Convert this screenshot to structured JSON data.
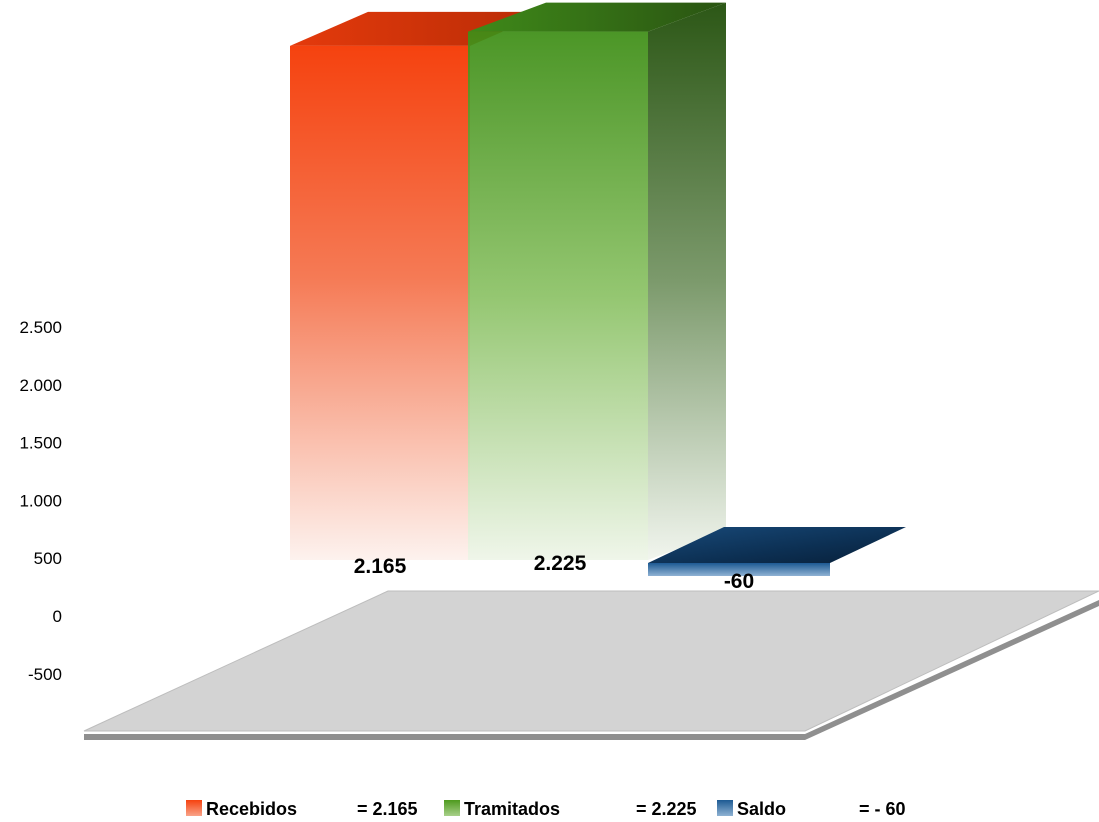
{
  "chart_data": {
    "type": "bar",
    "categories": [
      "Recebidos",
      "Tramitados",
      "Saldo"
    ],
    "values": [
      2165,
      2225,
      -60
    ],
    "value_labels": [
      "2.165",
      "2.225",
      "-60"
    ],
    "ylim": [
      -500,
      2500
    ],
    "yticks": [
      -500,
      0,
      500,
      1000,
      1500,
      2000,
      2500
    ],
    "ytick_labels": [
      "-500",
      "0",
      "500",
      "1.000",
      "1.500",
      "2.000",
      "2.500"
    ],
    "legend": {
      "placement": "bottom",
      "items": [
        {
          "name": "Recebidos",
          "value_text": "= 2.165"
        },
        {
          "name": "Tramitados",
          "value_text": "= 2.225"
        },
        {
          "name": "Saldo",
          "value_text": "= - 60"
        }
      ]
    },
    "colors": {
      "Recebidos": "#f5420f",
      "Tramitados": "#4e9a1e",
      "Saldo": "#1d5a93",
      "floor": "#d3d3d3"
    },
    "grid": false,
    "style": "3d"
  }
}
